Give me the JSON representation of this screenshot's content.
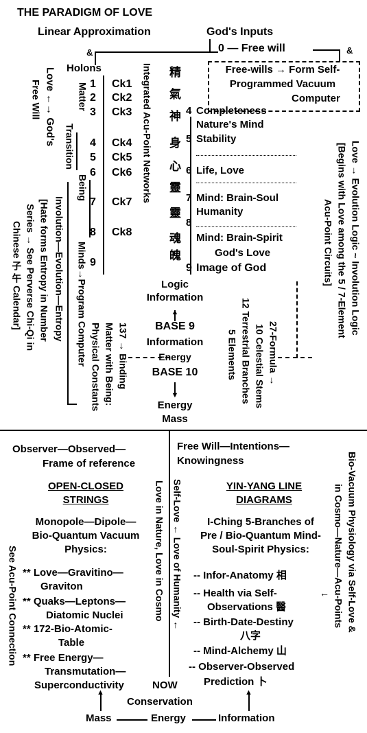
{
  "title": "THE PARADIGM OF LOVE",
  "top": {
    "linear": "Linear Approximation",
    "gods_inputs": "God's Inputs",
    "amp": "&",
    "free_will_zero": "0 — Free will",
    "holons": "Holons",
    "box_lines": [
      "Free-wills → Form Self-",
      "Programmed Vacuum",
      "Computer"
    ]
  },
  "left_vertical": {
    "love_gods": "Love ←→ God's",
    "free_will": "Free Will",
    "matter": "Matter",
    "transition": "Transition",
    "being": "Being",
    "minds": "Minds→Program Computer",
    "involution": "Involution—Evolution—Entropy",
    "hate": "[Hate forms Entropy in Number",
    "series": "Series → See Perverse Chi-Qi in",
    "chinese": "Chinese 子 午 Calendar]"
  },
  "levels": {
    "nums_left": [
      "1",
      "2",
      "3",
      "4",
      "5",
      "6",
      "7",
      "8",
      "9"
    ],
    "circuits": [
      "Ck1",
      "Ck2",
      "Ck3",
      "Ck4",
      "Ck5",
      "Ck6",
      "Ck7",
      "Ck8"
    ],
    "integrated": "Integrated Acu-Point Networks",
    "chinese_chars": [
      "精",
      "氣",
      "神",
      "身",
      "心",
      "靈",
      "靈",
      "魂",
      "魄"
    ],
    "right": [
      {
        "n": "4",
        "text": "Completeness"
      },
      {
        "n": "",
        "text": "Nature's Mind"
      },
      {
        "n": "5",
        "text": "Stability"
      },
      {
        "n": "6",
        "text": "Life, Love"
      },
      {
        "n": "7",
        "text": "Mind: Brain-Soul"
      },
      {
        "n": "",
        "text": "Humanity"
      },
      {
        "n": "8",
        "text": ""
      },
      {
        "n": "",
        "text": "Mind: Brain-Spirit"
      },
      {
        "n": "",
        "text": "God's Love"
      },
      {
        "n": "9",
        "text": "Image of God"
      }
    ]
  },
  "right_vertical": {
    "evolution": "Love → Evolution Logic ~ Involution Logic",
    "begins": "[Begins with Love among the 5 / 7-Element",
    "acu": "Acu-Point Circuits]"
  },
  "center": {
    "logic": "Logic",
    "information": "Information",
    "base9": "BASE  9",
    "information2": "Information",
    "energy": "Energy",
    "base10": "BASE 10",
    "energy2": "Energy",
    "mass": "Mass",
    "binding": [
      "137 → Binding",
      "Matter with Being:",
      "Physical Constants"
    ],
    "formula": [
      "27-Formula →",
      "10 Celestial Stems",
      "12 Terrestrial Branches",
      "5 Elements"
    ]
  },
  "bottom_left": {
    "observer": "Observer—Observed—",
    "frame": "Frame of reference",
    "strings": [
      "OPEN-CLOSED",
      "STRINGS"
    ],
    "monopole": [
      "Monopole—Dipole—",
      "Bio-Quantum Vacuum",
      "Physics:"
    ],
    "items": [
      "** Love—Gravitino—",
      "Graviton",
      "** Quaks—Leptons—",
      "Diatomic Nuclei",
      "** 172-Bio-Atomic-",
      "Table",
      "** Free Energy—",
      "Transmutation—",
      "Superconductivity"
    ],
    "see_acu": "See Acu-Point Connection",
    "love_nature": "Love in Nature, Love in Cosmo"
  },
  "bottom_right": {
    "free_will": "Free Will—Intentions—",
    "knowingness": "Knowingness",
    "yinyang": [
      "YIN-YANG LINE",
      "DIAGRAMS"
    ],
    "iching": [
      "I-Ching 5-Branches of",
      "Pre / Bio-Quantum Mind-",
      "Soul-Spirit Physics:"
    ],
    "items": [
      "-- Infor-Anatomy 相",
      "-- Health via Self-",
      "Observations 醫",
      "-- Birth-Date-Destiny",
      "八字",
      "-- Mind-Alchemy 山",
      "-- Observer-Observed",
      "Prediction 卜"
    ],
    "self_love": "Self-Love ← Love of Humanity ←",
    "bio_vacuum": "Bio-Vacuum Physiology via Self-Love &",
    "cosmo": "in Cosmo—Nature—Acu-Points"
  },
  "footer": {
    "now": "NOW",
    "conservation": "Conservation",
    "mass": "Mass",
    "energy": "Energy",
    "information": "Information"
  }
}
